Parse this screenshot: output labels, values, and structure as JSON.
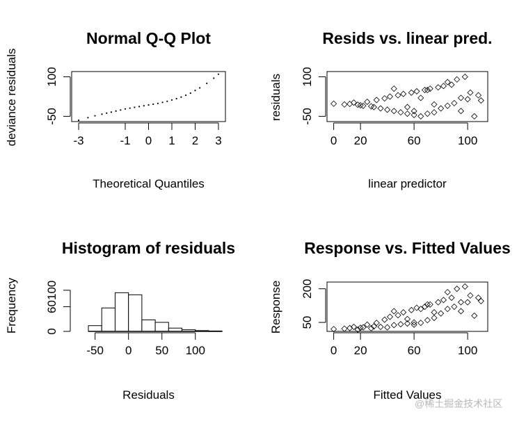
{
  "chart_data": [
    {
      "id": "qq",
      "type": "scatter",
      "title": "Normal Q-Q Plot",
      "xlabel": "Theoretical Quantiles",
      "ylabel": "deviance residuals",
      "xlim": [
        -3.3,
        3.3
      ],
      "ylim": [
        -70,
        120
      ],
      "xticks": [
        -3,
        -1,
        0,
        1,
        2,
        3
      ],
      "yticks": [
        -50,
        100
      ],
      "marker": "dot",
      "points_summary": "Points lie along an upward S-shaped curve from about (-3, -65) to (3, 115).",
      "x": [
        -3.0,
        -2.6,
        -2.3,
        -2.0,
        -1.8,
        -1.6,
        -1.4,
        -1.2,
        -1.0,
        -0.8,
        -0.6,
        -0.4,
        -0.2,
        0.0,
        0.2,
        0.4,
        0.6,
        0.8,
        1.0,
        1.2,
        1.4,
        1.6,
        1.8,
        2.0,
        2.2,
        2.5,
        2.8,
        3.0
      ],
      "y": [
        -65,
        -55,
        -48,
        -42,
        -38,
        -34,
        -30,
        -26,
        -22,
        -19,
        -16,
        -13,
        -10,
        -7,
        -4,
        -1,
        3,
        7,
        12,
        17,
        23,
        30,
        38,
        48,
        58,
        75,
        95,
        110
      ]
    },
    {
      "id": "resid",
      "type": "scatter",
      "title": "Resids vs. linear pred.",
      "xlabel": "linear predictor",
      "ylabel": "residuals",
      "xlim": [
        -5,
        115
      ],
      "ylim": [
        -70,
        120
      ],
      "xticks": [
        0,
        20,
        60,
        100
      ],
      "yticks": [
        -50,
        100
      ],
      "marker": "diamond",
      "x": [
        0,
        8,
        12,
        15,
        18,
        20,
        22,
        25,
        28,
        30,
        32,
        35,
        38,
        40,
        42,
        45,
        48,
        50,
        52,
        55,
        58,
        60,
        62,
        65,
        68,
        70,
        72,
        75,
        78,
        80,
        82,
        85,
        88,
        90,
        92,
        95,
        98,
        100,
        102,
        105,
        108,
        110,
        45,
        55,
        65,
        75,
        85,
        95,
        60,
        70
      ],
      "y": [
        -2,
        -5,
        -3,
        2,
        -6,
        -8,
        -10,
        5,
        -12,
        -15,
        12,
        -20,
        18,
        -25,
        25,
        -30,
        30,
        -35,
        35,
        -40,
        40,
        -45,
        45,
        -50,
        50,
        -40,
        55,
        -35,
        60,
        -20,
        65,
        -10,
        70,
        0,
        90,
        20,
        100,
        15,
        40,
        -50,
        30,
        10,
        55,
        -15,
        20,
        -5,
        80,
        -30,
        -30,
        50
      ]
    },
    {
      "id": "hist",
      "type": "bar",
      "title": "Histogram of residuals",
      "xlabel": "Residuals",
      "ylabel": "Frequency",
      "xlim": [
        -85,
        145
      ],
      "ylim": [
        0,
        125
      ],
      "xticks": [
        -50,
        0,
        50,
        100
      ],
      "yticks": [
        0,
        60,
        100
      ],
      "bins": [
        [
          -60,
          -40
        ],
        [
          -40,
          -20
        ],
        [
          -20,
          0
        ],
        [
          0,
          20
        ],
        [
          20,
          40
        ],
        [
          40,
          60
        ],
        [
          60,
          80
        ],
        [
          80,
          100
        ],
        [
          100,
          120
        ],
        [
          120,
          140
        ]
      ],
      "values": [
        14,
        57,
        94,
        89,
        28,
        22,
        8,
        4,
        2,
        1
      ]
    },
    {
      "id": "resp",
      "type": "scatter",
      "title": "Response vs. Fitted Values",
      "xlabel": "Fitted Values",
      "ylabel": "Response",
      "xlim": [
        -5,
        115
      ],
      "ylim": [
        10,
        230
      ],
      "xticks": [
        0,
        20,
        60,
        100
      ],
      "yticks": [
        50,
        200
      ],
      "marker": "diamond",
      "x": [
        0,
        8,
        12,
        15,
        18,
        20,
        22,
        25,
        28,
        30,
        32,
        35,
        38,
        40,
        42,
        45,
        48,
        50,
        52,
        55,
        58,
        60,
        62,
        65,
        68,
        70,
        72,
        75,
        78,
        80,
        82,
        85,
        88,
        90,
        92,
        95,
        98,
        100,
        102,
        105,
        108,
        110,
        45,
        55,
        65,
        75,
        85,
        95,
        60,
        70
      ],
      "y": [
        20,
        22,
        25,
        30,
        18,
        26,
        28,
        40,
        24,
        32,
        48,
        30,
        62,
        28,
        75,
        38,
        82,
        42,
        95,
        45,
        105,
        40,
        115,
        48,
        120,
        60,
        130,
        70,
        140,
        90,
        150,
        110,
        160,
        120,
        200,
        140,
        210,
        140,
        170,
        80,
        160,
        145,
        100,
        65,
        110,
        95,
        185,
        100,
        50,
        130
      ]
    }
  ],
  "watermark": "@稀土掘金技术社区"
}
